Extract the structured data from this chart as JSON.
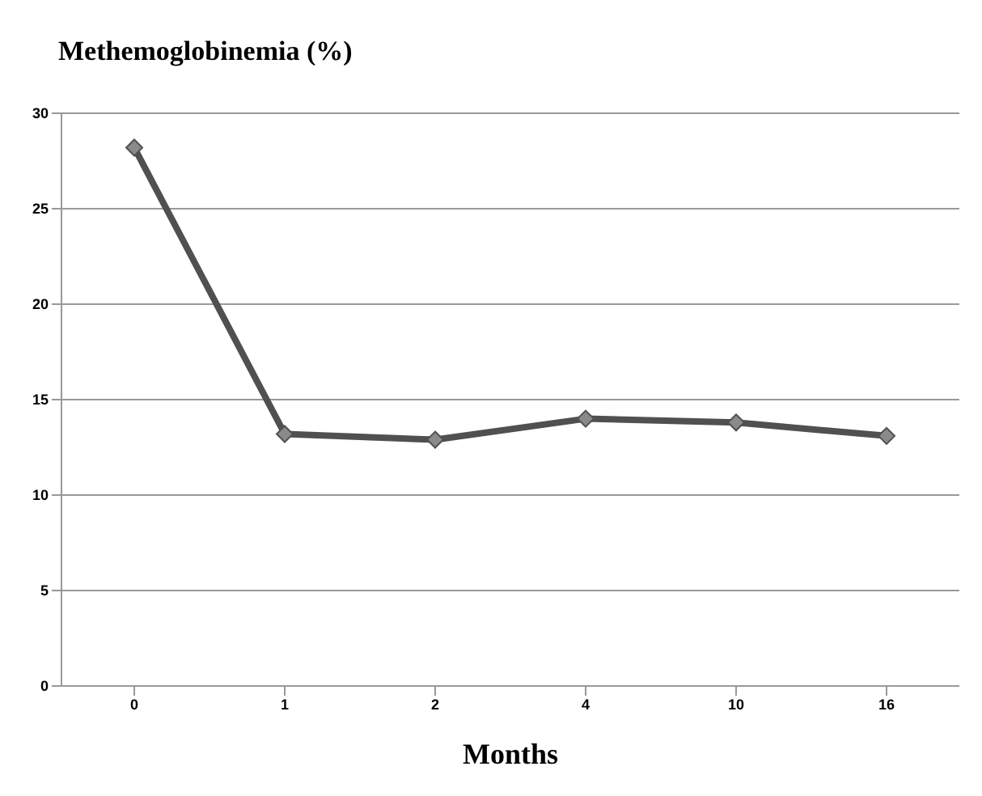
{
  "chart_data": {
    "type": "line",
    "title": "Methemoglobinemia (%)",
    "xlabel": "Months",
    "categories": [
      "0",
      "1",
      "2",
      "4",
      "10",
      "16"
    ],
    "series": [
      {
        "color": "#505050",
        "values": [
          28.2,
          13.2,
          12.9,
          14.0,
          13.8,
          13.1
        ]
      }
    ],
    "ylim": [
      0,
      30
    ],
    "yticks": [
      0,
      5,
      10,
      15,
      20,
      25,
      30
    ],
    "grid": "y",
    "marker": "diamond",
    "line_style": "solid",
    "legend": false
  }
}
